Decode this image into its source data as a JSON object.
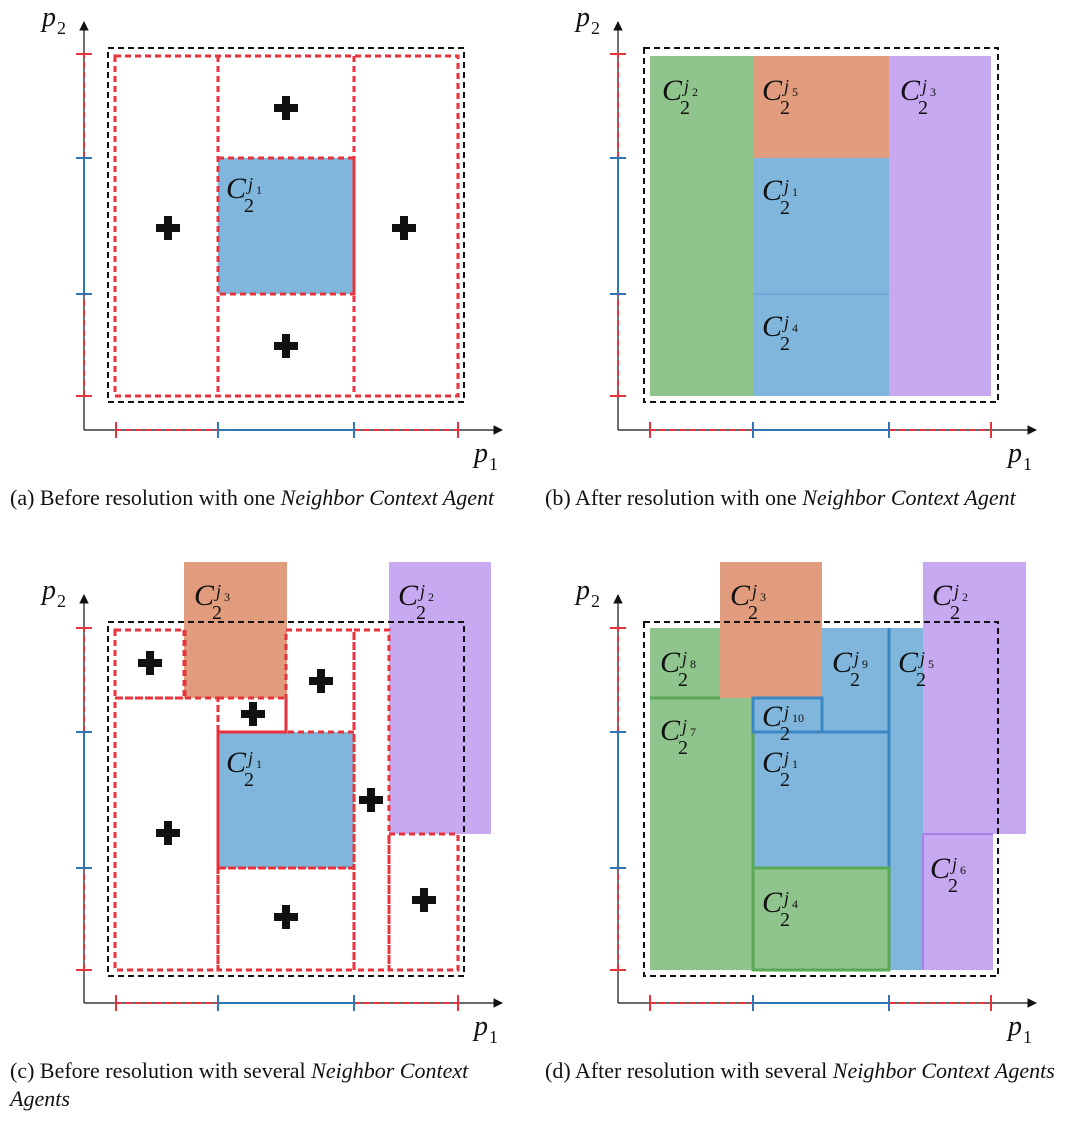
{
  "axes": {
    "x_label": "p",
    "x_sub": "1",
    "y_label": "p",
    "y_sub": "2"
  },
  "colors": {
    "green": "#8fc48c",
    "blue": "#80b6db",
    "orange": "#e09c7d",
    "purple": "#c7a9f1",
    "red": "#e8323c",
    "axis_blue": "#2f74b5",
    "dashed_black": "#111111"
  },
  "panels": [
    {
      "id": "a",
      "caption": {
        "prefix": "(a) Before resolution with one ",
        "italic": "Neighbor Context Agent"
      },
      "labels": [
        {
          "sup": "j",
          "supsub": "1"
        }
      ],
      "plus_count": 4
    },
    {
      "id": "b",
      "caption": {
        "prefix": "(b) After resolution with one ",
        "italic": "Neighbor Context Agent"
      },
      "labels": [
        {
          "sup": "j",
          "supsub": "2"
        },
        {
          "sup": "j",
          "supsub": "5"
        },
        {
          "sup": "j",
          "supsub": "3"
        },
        {
          "sup": "j",
          "supsub": "1"
        },
        {
          "sup": "j",
          "supsub": "4"
        }
      ]
    },
    {
      "id": "c",
      "caption": {
        "prefix": "(c) Before resolution with several ",
        "italic": "Neighbor Context Agents"
      },
      "labels": [
        {
          "sup": "j",
          "supsub": "3"
        },
        {
          "sup": "j",
          "supsub": "2"
        },
        {
          "sup": "j",
          "supsub": "1"
        }
      ],
      "plus_count": 7
    },
    {
      "id": "d",
      "caption": {
        "prefix": "(d) After resolution with several ",
        "italic": "Neighbor Context Agents"
      },
      "labels": [
        {
          "sup": "j",
          "supsub": "3"
        },
        {
          "sup": "j",
          "supsub": "2"
        },
        {
          "sup": "j",
          "supsub": "8"
        },
        {
          "sup": "j",
          "supsub": "9"
        },
        {
          "sup": "j",
          "supsub": "5"
        },
        {
          "sup": "j",
          "supsub": "7"
        },
        {
          "sup": "j",
          "supsub": "10"
        },
        {
          "sup": "j",
          "supsub": "1"
        },
        {
          "sup": "j",
          "supsub": "6"
        },
        {
          "sup": "j",
          "supsub": "4"
        }
      ]
    }
  ],
  "cell_symbol": "C",
  "cell_sub": "2"
}
